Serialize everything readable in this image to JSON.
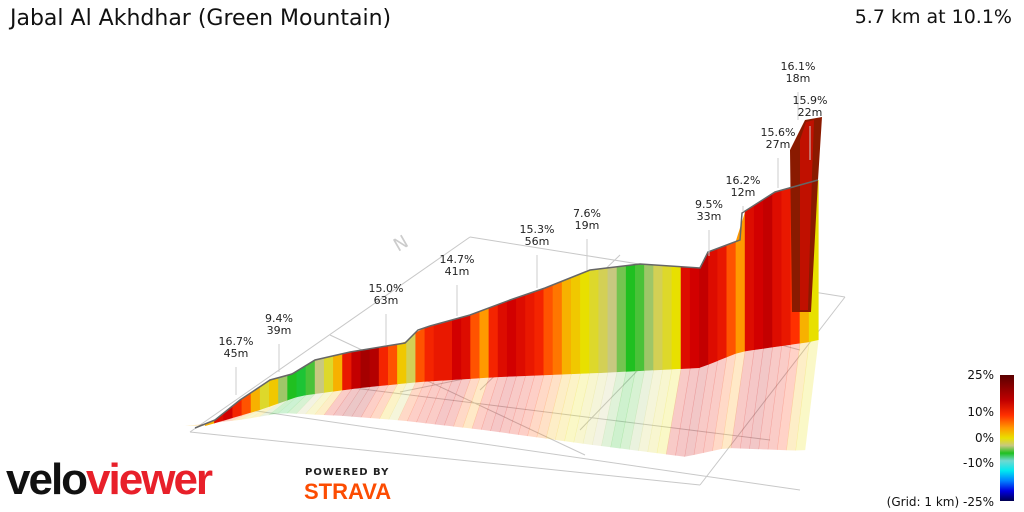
{
  "header": {
    "title": "Jabal Al Akhdhar (Green Mountain)",
    "summary": "5.7 km at 10.1%"
  },
  "chart_data": {
    "type": "area",
    "title": "Jabal Al Akhdhar (Green Mountain)",
    "distance_km": 5.7,
    "average_grade_pct": 10.1,
    "grid": "1 km",
    "segment_grades": [
      9,
      16,
      17,
      14,
      12,
      9,
      6,
      8,
      3,
      0,
      -1,
      1,
      4,
      6,
      9,
      15,
      18,
      20,
      19,
      14,
      12,
      8,
      5,
      12,
      14,
      15,
      15,
      17,
      16,
      12,
      10,
      14,
      16,
      17,
      16,
      15,
      14,
      12,
      11,
      9,
      8,
      7,
      6,
      5,
      4,
      2,
      0,
      1,
      3,
      5,
      6,
      7,
      16,
      17,
      18,
      16,
      15,
      12,
      10,
      16,
      17,
      18,
      16,
      15,
      13,
      9,
      7
    ],
    "annotations": [
      {
        "grade": "16.7%",
        "length": "45m"
      },
      {
        "grade": "9.4%",
        "length": "39m"
      },
      {
        "grade": "15.0%",
        "length": "63m"
      },
      {
        "grade": "14.7%",
        "length": "41m"
      },
      {
        "grade": "15.3%",
        "length": "56m"
      },
      {
        "grade": "7.6%",
        "length": "19m"
      },
      {
        "grade": "9.5%",
        "length": "33m"
      },
      {
        "grade": "16.2%",
        "length": "12m"
      },
      {
        "grade": "15.6%",
        "length": "27m"
      },
      {
        "grade": "16.1%",
        "length": "18m"
      },
      {
        "grade": "15.9%",
        "length": "22m"
      }
    ],
    "legend": {
      "ticks": [
        "25%",
        "10%",
        "0%",
        "-10%",
        "-25%"
      ],
      "grid_label": "(Grid: 1 km)"
    },
    "compass": "N"
  },
  "branding": {
    "logo_a": "velo",
    "logo_b": "viewer",
    "powered": "POWERED BY",
    "strava": "STRAVA"
  }
}
